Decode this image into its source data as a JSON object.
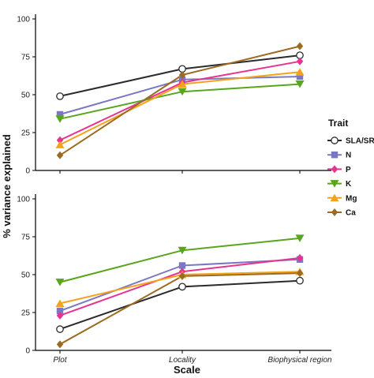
{
  "chart_data": {
    "type": "line",
    "xlabel": "Scale",
    "ylabel": "% variance explained",
    "categories": [
      "Plot",
      "Locality",
      "Biophysical region"
    ],
    "ylim": [
      0,
      100
    ],
    "yticks": [
      0,
      25,
      50,
      75,
      100
    ],
    "legend": {
      "title": "Trait",
      "placement": "right",
      "entries": [
        "SLA/SRL",
        "N",
        "P",
        "K",
        "Mg",
        "Ca"
      ]
    },
    "series_style": [
      {
        "name": "SLA/SRL",
        "color": "#2b2b2b",
        "marker": "open-circle"
      },
      {
        "name": "N",
        "color": "#7b78c3",
        "marker": "square"
      },
      {
        "name": "P",
        "color": "#e6338f",
        "marker": "diamond"
      },
      {
        "name": "K",
        "color": "#5aa51e",
        "marker": "triangle-down"
      },
      {
        "name": "Mg",
        "color": "#f5a21b",
        "marker": "triangle-up"
      },
      {
        "name": "Ca",
        "color": "#9c6b22",
        "marker": "diamond"
      }
    ],
    "panels": [
      {
        "position": "top",
        "series": [
          {
            "name": "SLA/SRL",
            "values": [
              49,
              67,
              76
            ]
          },
          {
            "name": "N",
            "values": [
              37,
              60,
              62
            ]
          },
          {
            "name": "P",
            "values": [
              20,
              58,
              72
            ]
          },
          {
            "name": "K",
            "values": [
              34,
              52,
              57
            ]
          },
          {
            "name": "Mg",
            "values": [
              17,
              57,
              65
            ]
          },
          {
            "name": "Ca",
            "values": [
              10,
              63,
              82
            ]
          }
        ]
      },
      {
        "position": "bottom",
        "series": [
          {
            "name": "SLA/SRL",
            "values": [
              14,
              42,
              46
            ]
          },
          {
            "name": "N",
            "values": [
              26,
              56,
              60
            ]
          },
          {
            "name": "P",
            "values": [
              23,
              52,
              61
            ]
          },
          {
            "name": "K",
            "values": [
              45,
              66,
              74
            ]
          },
          {
            "name": "Mg",
            "values": [
              31,
              50,
              52
            ]
          },
          {
            "name": "Ca",
            "values": [
              4,
              49,
              51
            ]
          }
        ]
      }
    ]
  }
}
